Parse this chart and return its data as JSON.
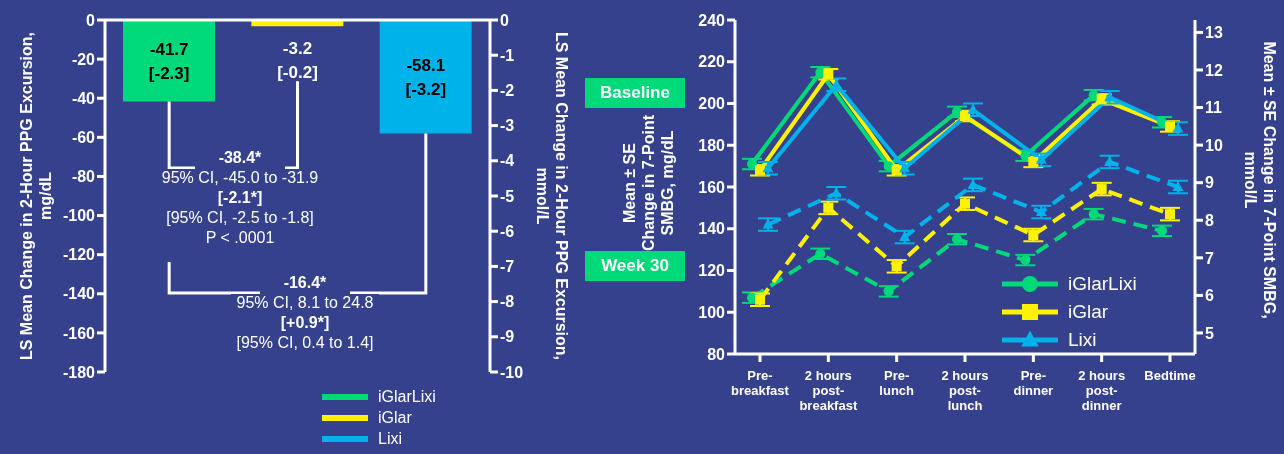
{
  "chart_data": [
    {
      "type": "bar",
      "categories": [
        null,
        null,
        null
      ],
      "stacked": true,
      "ylabel": "LS Mean Change in 2-Hour PPG Excursion, mg/dL",
      "y2label": "LS Mean Change in 2-Hour PPG Excursion, mmol/L",
      "ylim": [
        -180,
        0
      ],
      "yticks": [
        0,
        -20,
        -40,
        -60,
        -80,
        -100,
        -120,
        -140,
        -160,
        -180
      ],
      "y2lim": [
        -10,
        0
      ],
      "y2ticks": [
        0,
        -1,
        -2,
        -3,
        -4,
        -5,
        -6,
        -7,
        -8,
        -9,
        -10
      ],
      "grid": false,
      "legend": "bottom",
      "series": [
        {
          "name": "iGlarLixi",
          "color": "#00d97a",
          "values": [
            -41.7,
            null,
            null
          ],
          "value_labels": [
            "-41.7\n[-2.3]",
            null,
            null
          ]
        },
        {
          "name": "iGlar",
          "color": "#fff200",
          "values": [
            null,
            -3.2,
            null
          ],
          "value_labels": [
            null,
            "-3.2\n[-0.2]",
            null
          ]
        },
        {
          "name": "Lixi",
          "color": "#00b2ea",
          "values": [
            null,
            null,
            -58.1
          ],
          "value_labels": [
            null,
            null,
            "-58.1\n[-3.2]"
          ]
        }
      ],
      "annotations": [
        "-38.4*\n95% CI, -45.0 to -31.9\n[-2.1*]\n[95% CI, -2.5 to -1.8]\nP < .0001",
        "-16.4*\n95% CI, 8.1 to 24.8\n[+0.9*]\n[95% CI, 0.4 to 1.4]"
      ]
    },
    {
      "type": "line",
      "categories": [
        "Pre-\nbreakfast",
        "2 hours\npost-\nbreakfast",
        "Pre-\nlunch",
        "2 hours\npost-\nlunch",
        "Pre-\ndinner",
        "2 hours\npost-\ndinner",
        "Bedtime"
      ],
      "ylabel": "Mean ± SE Change in 7-Point SMBG, mg/dL",
      "y2label": "Mean ± SE Change in 7-Point SMBG, mmol/L",
      "ylim": [
        80,
        240
      ],
      "yticks": [
        80,
        100,
        120,
        140,
        160,
        180,
        200,
        220,
        240
      ],
      "y2lim": [
        4.44,
        13.33
      ],
      "y2ticks": [
        5,
        6,
        7,
        8,
        9,
        10,
        11,
        12,
        13
      ],
      "grid": false,
      "legend": "bottom right",
      "annotations": [
        "Baseline",
        "Week 30"
      ],
      "series": [
        {
          "name": "iGlarLixi",
          "color": "#00d97a",
          "marker": "circle",
          "values": [
            171,
            215,
            170,
            196,
            175,
            204,
            191
          ],
          "errors": [
            2.5,
            2.5,
            2.5,
            2.5,
            2.5,
            2.5,
            2.5
          ]
        },
        {
          "name": "iGlar",
          "color": "#fff200",
          "marker": "square",
          "values": [
            168,
            214,
            168,
            194,
            172,
            202,
            189
          ],
          "errors": [
            2.5,
            2.5,
            2.5,
            2.5,
            2.5,
            2.5,
            2.5
          ]
        },
        {
          "name": "Lixi",
          "color": "#00b2ea",
          "marker": "triangle",
          "values": [
            169,
            209,
            169,
            197,
            173,
            203,
            188
          ],
          "errors": [
            3,
            3,
            3,
            3,
            3,
            3,
            3
          ]
        },
        {
          "color": "#00d97a",
          "marker": "circle",
          "line_style": "dashed",
          "values": [
            107,
            128,
            110,
            135,
            125,
            147,
            139
          ],
          "errors": [
            2.5,
            2.5,
            2.5,
            2.5,
            2.5,
            2.5,
            2.5
          ]
        },
        {
          "color": "#fff200",
          "marker": "square",
          "line_style": "dashed",
          "values": [
            106,
            150,
            122,
            152,
            137,
            159,
            147
          ],
          "errors": [
            3,
            3,
            3,
            3,
            3,
            3,
            3
          ]
        },
        {
          "color": "#00b2ea",
          "marker": "triangle",
          "line_style": "dashed",
          "values": [
            142,
            157,
            136,
            161,
            148,
            172,
            160
          ],
          "errors": [
            3,
            3,
            3,
            3,
            3,
            3,
            3
          ]
        }
      ]
    }
  ]
}
